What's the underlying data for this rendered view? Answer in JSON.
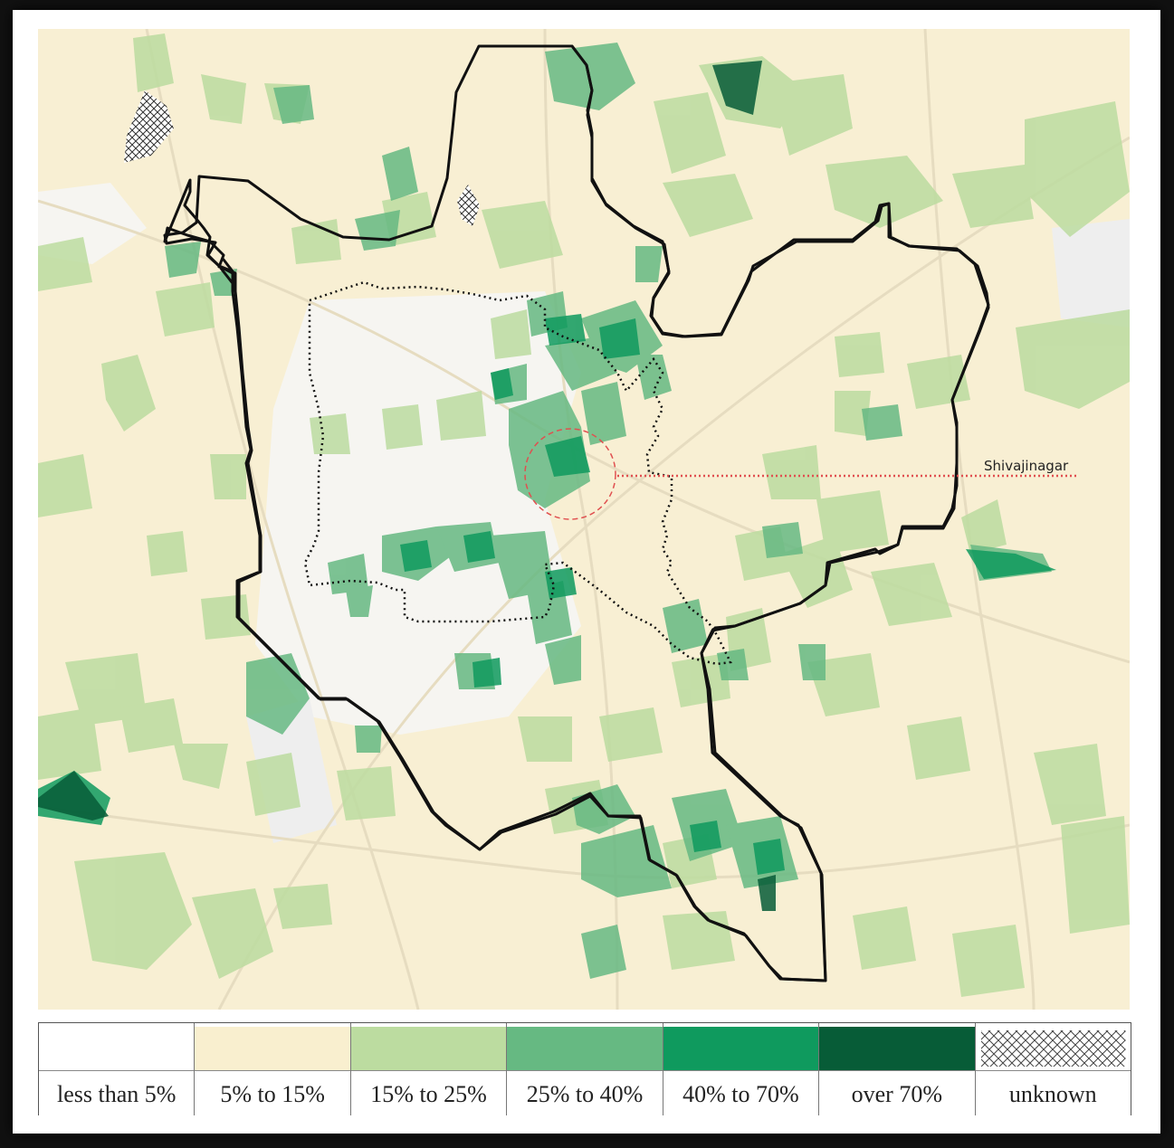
{
  "map": {
    "annotation": "Shivajinagar",
    "colors": {
      "background": "#f8efd3",
      "road": "#e6dcc0",
      "boundary": "#111111",
      "inner_boundary": "#111111",
      "marker": "#e05050"
    }
  },
  "legend": {
    "items": [
      {
        "label": "less than 5%",
        "color": "#ffffff"
      },
      {
        "label": "5% to 15%",
        "color": "#f9efcf"
      },
      {
        "label": "15% to 25%",
        "color": "#bcdca0"
      },
      {
        "label": "25% to 40%",
        "color": "#66b982"
      },
      {
        "label": "40% to 70%",
        "color": "#0f9a5e"
      },
      {
        "label": "over 70%",
        "color": "#075c37"
      },
      {
        "label": "unknown",
        "pattern": "crosshatch"
      }
    ]
  }
}
